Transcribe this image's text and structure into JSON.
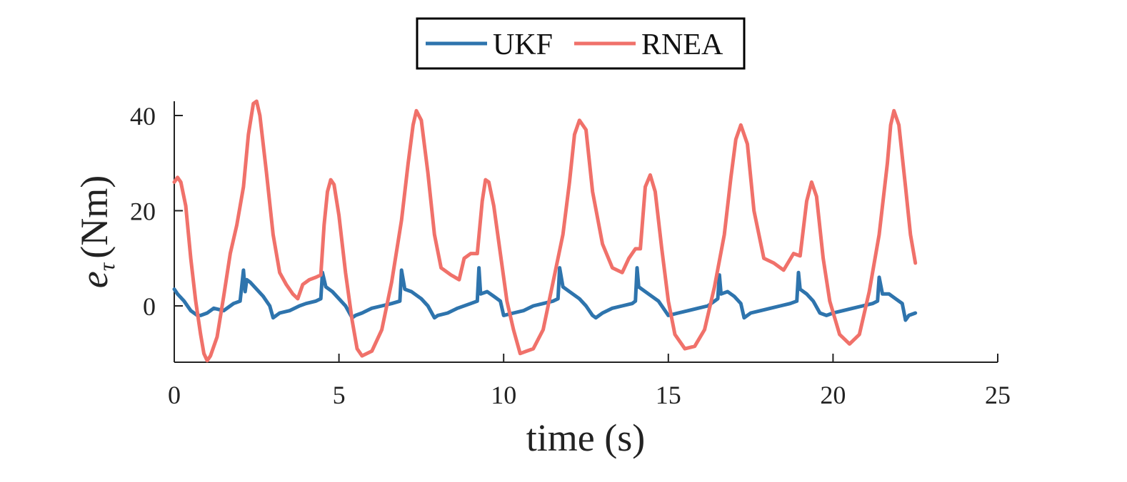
{
  "chart_data": {
    "type": "line",
    "xlabel": "time (s)",
    "ylabel_main": "e",
    "ylabel_sub": "τ",
    "ylabel_unit": "(Nm)",
    "xlim": [
      0,
      25
    ],
    "ylim": [
      -12,
      43
    ],
    "xticks": [
      0,
      5,
      10,
      15,
      20,
      25
    ],
    "yticks": [
      0,
      20,
      40
    ],
    "grid": false,
    "legend_position": "top-center",
    "series": [
      {
        "name": "UKF",
        "color": "#2e74ad",
        "x": [
          0,
          0.1,
          0.3,
          0.5,
          0.7,
          0.8,
          1.0,
          1.2,
          1.5,
          1.8,
          2.0,
          2.1,
          2.15,
          2.2,
          2.3,
          2.5,
          2.7,
          2.9,
          3.0,
          3.2,
          3.5,
          3.8,
          4.0,
          4.3,
          4.45,
          4.5,
          4.6,
          4.8,
          5.0,
          5.2,
          5.4,
          5.5,
          5.7,
          6.0,
          6.3,
          6.6,
          6.85,
          6.9,
          7.0,
          7.2,
          7.5,
          7.7,
          7.9,
          8.0,
          8.3,
          8.6,
          9.0,
          9.2,
          9.25,
          9.3,
          9.5,
          9.7,
          9.9,
          10.0,
          10.3,
          10.6,
          10.9,
          11.2,
          11.5,
          11.65,
          11.7,
          11.8,
          12.0,
          12.3,
          12.5,
          12.7,
          12.8,
          13.0,
          13.3,
          13.6,
          13.9,
          14.0,
          14.05,
          14.1,
          14.3,
          14.5,
          14.7,
          14.9,
          15.0,
          15.3,
          15.6,
          15.9,
          16.2,
          16.4,
          16.5,
          16.55,
          16.6,
          16.8,
          17.0,
          17.2,
          17.3,
          17.5,
          17.8,
          18.1,
          18.4,
          18.7,
          18.9,
          18.95,
          19.0,
          19.2,
          19.4,
          19.6,
          19.8,
          20.0,
          20.3,
          20.6,
          20.9,
          21.2,
          21.35,
          21.4,
          21.5,
          21.7,
          21.9,
          22.1,
          22.2,
          22.3,
          22.5
        ],
        "y": [
          3.5,
          2.5,
          1.0,
          -1.0,
          -2.0,
          -2.0,
          -1.5,
          -0.5,
          -1.0,
          0.5,
          1.0,
          7.5,
          3.0,
          5.5,
          5.0,
          3.5,
          2.0,
          0.0,
          -2.5,
          -1.5,
          -1.0,
          0.0,
          0.5,
          1.0,
          1.5,
          7.0,
          4.0,
          3.0,
          1.5,
          0.0,
          -2.5,
          -2.0,
          -1.5,
          -0.5,
          0.0,
          0.5,
          1.0,
          7.5,
          3.5,
          3.0,
          1.5,
          0.0,
          -2.5,
          -2.0,
          -1.5,
          -0.5,
          0.5,
          1.0,
          8.0,
          2.5,
          3.0,
          2.0,
          1.0,
          -2.0,
          -1.5,
          -1.0,
          0.0,
          0.5,
          1.0,
          1.5,
          8.0,
          4.0,
          3.0,
          1.5,
          0.0,
          -2.0,
          -2.5,
          -1.5,
          -0.5,
          0.0,
          0.5,
          1.0,
          8.0,
          4.0,
          3.0,
          2.0,
          1.0,
          -1.0,
          -2.0,
          -1.5,
          -1.0,
          -0.5,
          0.0,
          1.0,
          1.5,
          6.5,
          2.5,
          3.0,
          2.0,
          0.5,
          -2.5,
          -1.5,
          -1.0,
          -0.5,
          0.0,
          0.5,
          1.0,
          7.0,
          3.5,
          2.5,
          1.0,
          -1.5,
          -2.0,
          -1.5,
          -1.0,
          -0.5,
          0.0,
          0.5,
          1.0,
          6.0,
          2.5,
          2.5,
          1.5,
          0.5,
          -3.0,
          -2.0,
          -1.5
        ]
      },
      {
        "name": "RNEA",
        "color": "#f0716a",
        "x": [
          0,
          0.1,
          0.2,
          0.35,
          0.5,
          0.65,
          0.8,
          0.9,
          1.0,
          1.1,
          1.3,
          1.5,
          1.7,
          1.9,
          2.1,
          2.25,
          2.4,
          2.5,
          2.6,
          2.8,
          3.0,
          3.2,
          3.4,
          3.6,
          3.75,
          3.9,
          4.1,
          4.3,
          4.45,
          4.55,
          4.65,
          4.75,
          4.85,
          5.0,
          5.2,
          5.4,
          5.55,
          5.7,
          5.85,
          6.0,
          6.3,
          6.6,
          6.9,
          7.1,
          7.25,
          7.35,
          7.5,
          7.7,
          7.9,
          8.1,
          8.4,
          8.65,
          8.8,
          9.0,
          9.2,
          9.35,
          9.45,
          9.55,
          9.7,
          9.9,
          10.1,
          10.3,
          10.5,
          10.7,
          10.9,
          11.2,
          11.5,
          11.8,
          12.0,
          12.15,
          12.3,
          12.5,
          12.7,
          13.0,
          13.3,
          13.6,
          13.8,
          14.0,
          14.15,
          14.3,
          14.45,
          14.6,
          14.8,
          15.0,
          15.2,
          15.5,
          15.8,
          16.1,
          16.4,
          16.7,
          16.9,
          17.05,
          17.2,
          17.4,
          17.6,
          17.9,
          18.2,
          18.5,
          18.8,
          19.0,
          19.2,
          19.35,
          19.5,
          19.7,
          19.9,
          20.2,
          20.5,
          20.8,
          21.1,
          21.4,
          21.65,
          21.75,
          21.85,
          22.0,
          22.2,
          22.35,
          22.5
        ],
        "y": [
          26.0,
          27.0,
          26.0,
          21.0,
          10.0,
          1.0,
          -6.0,
          -10.0,
          -11.5,
          -10.5,
          -6.5,
          2.0,
          11.0,
          17.0,
          25.0,
          36.0,
          42.5,
          43.0,
          40.0,
          28.0,
          15.0,
          7.0,
          4.5,
          2.5,
          1.5,
          4.5,
          5.5,
          6.0,
          6.5,
          17.0,
          24.0,
          26.5,
          25.5,
          19.0,
          7.0,
          -3.0,
          -9.0,
          -10.5,
          -10.0,
          -9.5,
          -5.0,
          5.0,
          18.0,
          30.0,
          38.0,
          41.0,
          39.0,
          28.0,
          15.0,
          8.0,
          6.5,
          5.5,
          10.0,
          11.0,
          11.0,
          22.0,
          26.5,
          26.0,
          21.0,
          11.0,
          1.0,
          -5.0,
          -10.0,
          -9.5,
          -9.0,
          -5.0,
          5.0,
          15.0,
          26.0,
          36.0,
          39.0,
          37.0,
          24.0,
          13.0,
          8.0,
          7.0,
          10.0,
          12.0,
          12.0,
          25.0,
          27.5,
          24.0,
          12.0,
          1.0,
          -6.0,
          -9.0,
          -8.5,
          -5.0,
          4.0,
          15.0,
          27.0,
          35.0,
          38.0,
          34.0,
          20.0,
          10.0,
          9.0,
          7.5,
          11.0,
          10.5,
          22.0,
          26.0,
          23.0,
          10.0,
          1.0,
          -6.0,
          -8.0,
          -6.0,
          3.0,
          15.0,
          30.0,
          38.0,
          41.0,
          38.0,
          25.0,
          15.0,
          9.0
        ]
      }
    ]
  }
}
